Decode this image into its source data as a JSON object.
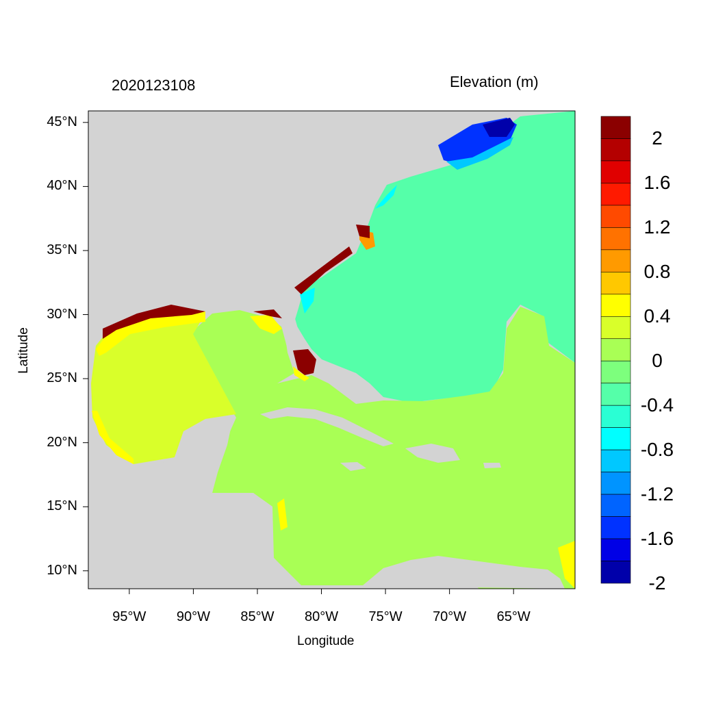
{
  "header": {
    "timestamp": "2020123108",
    "variable": "Elevation (m)"
  },
  "axes": {
    "xlabel": "Longitude",
    "ylabel": "Latitude",
    "lon_range": [
      -98.2,
      -60.2
    ],
    "lat_range": [
      8.6,
      45.9
    ],
    "x_ticks": [
      {
        "value": -95,
        "label": "95°W"
      },
      {
        "value": -90,
        "label": "90°W"
      },
      {
        "value": -85,
        "label": "85°W"
      },
      {
        "value": -80,
        "label": "80°W"
      },
      {
        "value": -75,
        "label": "75°W"
      },
      {
        "value": -70,
        "label": "70°W"
      },
      {
        "value": -65,
        "label": "65°W"
      }
    ],
    "y_ticks": [
      {
        "value": 45,
        "label": "45°N"
      },
      {
        "value": 40,
        "label": "40°N"
      },
      {
        "value": 35,
        "label": "35°N"
      },
      {
        "value": 30,
        "label": "30°N"
      },
      {
        "value": 25,
        "label": "25°N"
      },
      {
        "value": 20,
        "label": "20°N"
      },
      {
        "value": 15,
        "label": "15°N"
      },
      {
        "value": 10,
        "label": "10°N"
      }
    ]
  },
  "colorbar": {
    "colors": [
      "#8b0000",
      "#b40000",
      "#e00000",
      "#ff1a00",
      "#ff4a00",
      "#ff7200",
      "#ff9a00",
      "#ffc800",
      "#ffff00",
      "#d9ff2a",
      "#a9ff55",
      "#7dff7d",
      "#55ffa9",
      "#2affd4",
      "#00ffff",
      "#00c8ff",
      "#0094ff",
      "#0064ff",
      "#0032ff",
      "#0000e6",
      "#0000aa"
    ],
    "labels": [
      "2",
      "1.6",
      "1.2",
      "0.8",
      "0.4",
      "0",
      "-0.4",
      "-0.8",
      "-1.2",
      "-1.6",
      "-2"
    ]
  },
  "colors": {
    "land": "#d3d3d3",
    "gulf": "#d9ff2a",
    "caribbean": "#a9ff55",
    "atlantic": "#55ffa9",
    "surge_high": "#8b0000",
    "gulf_of_maine": "#0032ff"
  }
}
